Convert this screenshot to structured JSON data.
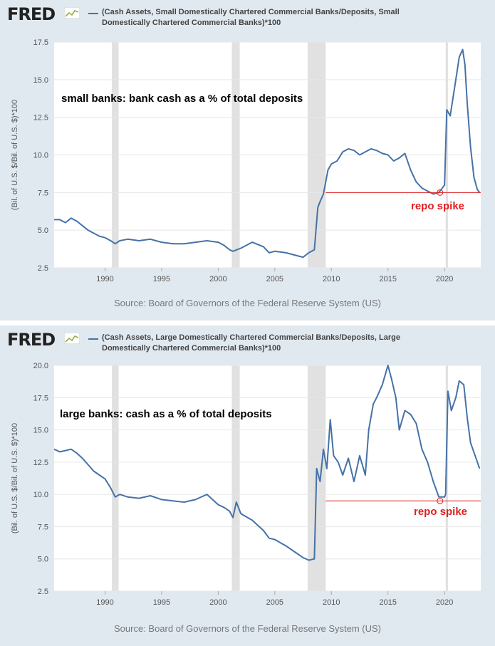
{
  "source_text": "Source: Board of Governors of the Federal Reserve System (US)",
  "colors": {
    "series": "#4572a7",
    "annotation": "#e02020",
    "recession": "#e1e1e1",
    "panel_bg": "#e1e9f0"
  },
  "chart_data": [
    {
      "type": "line",
      "logo": "FRED",
      "legend": "(Cash Assets, Small Domestically Chartered Commercial Banks/Deposits, Small Domestically Chartered Commercial Banks)*100",
      "ylabel": "(Bil. of U.S. $/Bil. of U.S. $)*100",
      "annotation_title": "small banks: bank cash as a % of total deposits",
      "annotation_label": "repo spike",
      "reference_line": 7.5,
      "reference_start": 2009.5,
      "marker": {
        "x": 2019.6,
        "y": 7.5
      },
      "xlim": [
        1985.5,
        2023.2
      ],
      "ylim": [
        2.5,
        17.5
      ],
      "xticks": [
        1990,
        1995,
        2000,
        2005,
        2010,
        2015,
        2020
      ],
      "yticks": [
        "2.5",
        "5.0",
        "7.5",
        "10.0",
        "12.5",
        "15.0",
        "17.5"
      ],
      "recessions": [
        [
          1990.6,
          1991.2
        ],
        [
          2001.2,
          2001.9
        ],
        [
          2007.9,
          2009.5
        ],
        [
          2020.1,
          2020.3
        ]
      ],
      "x": [
        1985.5,
        1986,
        1986.5,
        1987,
        1987.5,
        1988,
        1988.5,
        1989,
        1989.5,
        1990,
        1990.5,
        1990.9,
        1991.3,
        1992,
        1993,
        1994,
        1995,
        1996,
        1997,
        1998,
        1999,
        2000,
        2000.5,
        2001,
        2001.3,
        2002,
        2003,
        2004,
        2004.5,
        2005,
        2006,
        2007,
        2007.5,
        2008,
        2008.5,
        2008.8,
        2009,
        2009.3,
        2009.7,
        2010,
        2010.5,
        2011,
        2011.5,
        2012,
        2012.5,
        2013,
        2013.5,
        2014,
        2014.5,
        2015,
        2015.5,
        2016,
        2016.5,
        2017,
        2017.5,
        2018,
        2018.5,
        2019,
        2019.5,
        2020,
        2020.2,
        2020.5,
        2021,
        2021.3,
        2021.6,
        2021.8,
        2022,
        2022.3,
        2022.6,
        2022.9,
        2023.1
      ],
      "y": [
        5.7,
        5.7,
        5.5,
        5.8,
        5.6,
        5.3,
        5.0,
        4.8,
        4.6,
        4.5,
        4.3,
        4.1,
        4.3,
        4.4,
        4.3,
        4.4,
        4.2,
        4.1,
        4.1,
        4.2,
        4.3,
        4.2,
        4.0,
        3.7,
        3.6,
        3.8,
        4.2,
        3.9,
        3.5,
        3.6,
        3.5,
        3.3,
        3.2,
        3.5,
        3.7,
        6.5,
        6.9,
        7.4,
        9.0,
        9.4,
        9.6,
        10.2,
        10.4,
        10.3,
        10.0,
        10.2,
        10.4,
        10.3,
        10.1,
        10.0,
        9.6,
        9.8,
        10.1,
        9.0,
        8.2,
        7.8,
        7.6,
        7.4,
        7.5,
        8.0,
        13.0,
        12.6,
        15.0,
        16.5,
        17.0,
        16.0,
        13.5,
        10.5,
        8.5,
        7.7,
        7.5
      ]
    },
    {
      "type": "line",
      "logo": "FRED",
      "legend": "(Cash Assets, Large Domestically Chartered Commercial Banks/Deposits, Large Domestically Chartered Commercial Banks)*100",
      "ylabel": "(Bil. of U.S. $/Bil. of U.S. $)*100",
      "annotation_title": "large banks: cash as a % of total deposits",
      "annotation_label": "repo spike",
      "reference_line": 9.5,
      "reference_start": 2009.5,
      "marker": {
        "x": 2019.6,
        "y": 9.5
      },
      "xlim": [
        1985.5,
        2023.2
      ],
      "ylim": [
        2.5,
        20.0
      ],
      "xticks": [
        1990,
        1995,
        2000,
        2005,
        2010,
        2015,
        2020
      ],
      "yticks": [
        "2.5",
        "5.0",
        "7.5",
        "10.0",
        "12.5",
        "15.0",
        "17.5",
        "20.0"
      ],
      "recessions": [
        [
          1990.6,
          1991.2
        ],
        [
          2001.2,
          2001.9
        ],
        [
          2007.9,
          2009.5
        ],
        [
          2020.1,
          2020.3
        ]
      ],
      "x": [
        1985.5,
        1986,
        1986.5,
        1987,
        1987.5,
        1988,
        1988.5,
        1989,
        1989.5,
        1990,
        1990.5,
        1990.9,
        1991.3,
        1992,
        1993,
        1994,
        1995,
        1996,
        1997,
        1998,
        1999,
        2000,
        2000.5,
        2001,
        2001.3,
        2001.6,
        2002,
        2003,
        2004,
        2004.5,
        2005,
        2006,
        2007,
        2007.5,
        2008,
        2008.5,
        2008.7,
        2009,
        2009.3,
        2009.6,
        2009.9,
        2010.2,
        2010.6,
        2011,
        2011.5,
        2012,
        2012.5,
        2013,
        2013.3,
        2013.7,
        2014,
        2014.5,
        2015,
        2015.3,
        2015.7,
        2016,
        2016.5,
        2017,
        2017.5,
        2018,
        2018.5,
        2019,
        2019.5,
        2020,
        2020.1,
        2020.3,
        2020.6,
        2021,
        2021.3,
        2021.7,
        2022,
        2022.3,
        2022.7,
        2023.1
      ],
      "y": [
        13.5,
        13.3,
        13.4,
        13.5,
        13.2,
        12.8,
        12.3,
        11.8,
        11.5,
        11.2,
        10.5,
        9.8,
        10.0,
        9.8,
        9.7,
        9.9,
        9.6,
        9.5,
        9.4,
        9.6,
        10.0,
        9.2,
        9.0,
        8.7,
        8.2,
        9.4,
        8.5,
        8.0,
        7.2,
        6.6,
        6.5,
        6.0,
        5.4,
        5.1,
        4.9,
        5.0,
        12.0,
        11.0,
        13.5,
        12.0,
        15.8,
        13.0,
        12.5,
        11.5,
        12.8,
        11.0,
        13.0,
        11.5,
        15.0,
        17.0,
        17.5,
        18.5,
        20.0,
        19.0,
        17.5,
        15.0,
        16.5,
        16.2,
        15.5,
        13.5,
        12.5,
        11.0,
        9.8,
        9.8,
        10.0,
        18.0,
        16.5,
        17.5,
        18.8,
        18.5,
        16.0,
        14.0,
        13.0,
        12.0
      ]
    }
  ]
}
